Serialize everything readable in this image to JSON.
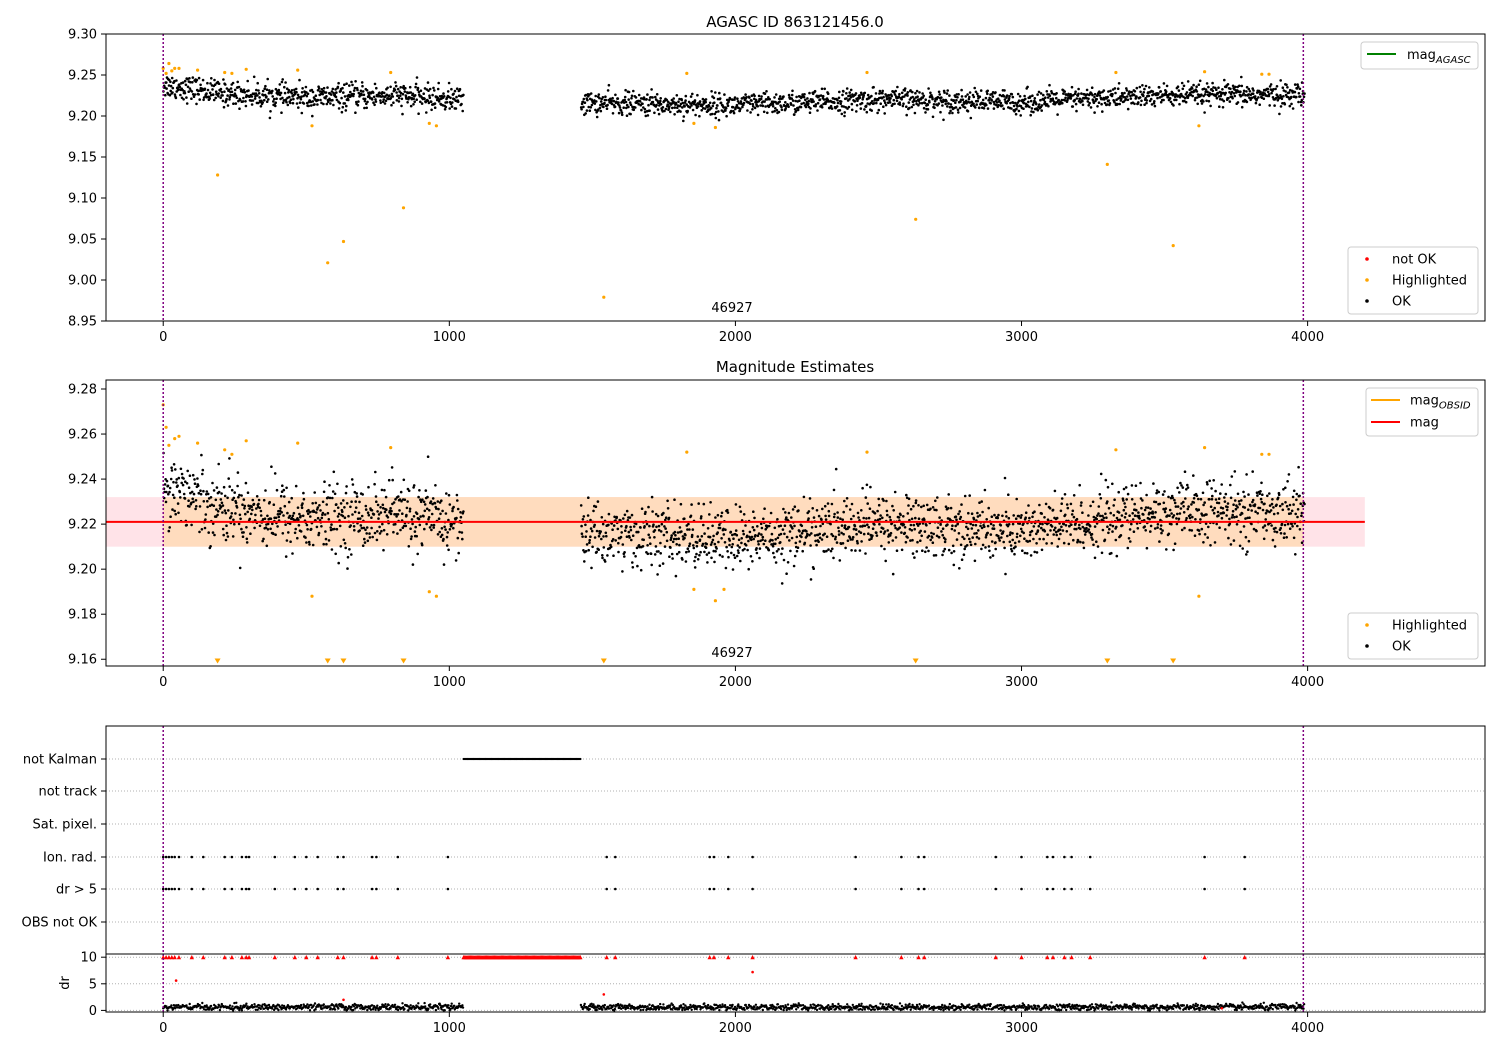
{
  "chart_data": [
    {
      "type": "scatter",
      "title": "AGASC ID 863121456.0",
      "xlim": [
        -200,
        4620
      ],
      "ylim": [
        8.95,
        9.3
      ],
      "xticks": [
        "0",
        "1000",
        "2000",
        "3000",
        "4000"
      ],
      "yticks": [
        "8.95",
        "9.00",
        "9.05",
        "9.10",
        "9.15",
        "9.20",
        "9.25",
        "9.30"
      ],
      "grid": false,
      "obsid_label": "46927",
      "vlines": [
        0,
        3985
      ],
      "legend_upper": {
        "placement": "top-right",
        "entries": [
          {
            "label": "mag",
            "sub": "AGASC",
            "color": "#008000"
          }
        ]
      },
      "legend_lower": {
        "placement": "bottom-right",
        "entries": [
          {
            "label": "not OK",
            "color": "#ff0000"
          },
          {
            "label": "Highlighted",
            "color": "#ffa500"
          },
          {
            "label": "OK",
            "color": "#000000"
          }
        ]
      },
      "series": [
        {
          "name": "OK",
          "color": "#000000",
          "segments": [
            {
              "x_start": 0,
              "x_end": 1050,
              "trend": [
                [
                  0,
                  9.238
                ],
                [
                  200,
                  9.228
                ],
                [
                  500,
                  9.222
                ],
                [
                  800,
                  9.225
                ],
                [
                  1050,
                  9.22
                ]
              ],
              "spread": 0.011
            },
            {
              "x_start": 1460,
              "x_end": 3990,
              "trend": [
                [
                  1460,
                  9.216
                ],
                [
                  2000,
                  9.213
                ],
                [
                  2500,
                  9.22
                ],
                [
                  3000,
                  9.217
                ],
                [
                  3500,
                  9.225
                ],
                [
                  3990,
                  9.226
                ]
              ],
              "spread": 0.01
            }
          ]
        },
        {
          "name": "Highlighted",
          "color": "#ffa500",
          "points": [
            [
              0,
              9.258
            ],
            [
              10,
              9.252
            ],
            [
              20,
              9.264
            ],
            [
              30,
              9.255
            ],
            [
              40,
              9.258
            ],
            [
              55,
              9.258
            ],
            [
              120,
              9.256
            ],
            [
              215,
              9.253
            ],
            [
              240,
              9.252
            ],
            [
              290,
              9.257
            ],
            [
              470,
              9.256
            ],
            [
              795,
              9.253
            ],
            [
              1830,
              9.252
            ],
            [
              2460,
              9.253
            ],
            [
              3330,
              9.253
            ],
            [
              3840,
              9.251
            ],
            [
              3865,
              9.251
            ],
            [
              3640,
              9.254
            ],
            [
              190,
              9.128
            ],
            [
              520,
              9.188
            ],
            [
              575,
              9.021
            ],
            [
              630,
              9.047
            ],
            [
              840,
              9.088
            ],
            [
              930,
              9.191
            ],
            [
              955,
              9.188
            ],
            [
              1540,
              8.979
            ],
            [
              1855,
              9.191
            ],
            [
              1930,
              9.186
            ],
            [
              2630,
              9.074
            ],
            [
              3300,
              9.141
            ],
            [
              3530,
              9.042
            ],
            [
              3620,
              9.188
            ]
          ]
        }
      ]
    },
    {
      "type": "scatter",
      "title": "Magnitude Estimates",
      "xlim": [
        -200,
        4620
      ],
      "ylim": [
        9.157,
        9.284
      ],
      "xticks": [
        "0",
        "1000",
        "2000",
        "3000",
        "4000"
      ],
      "yticks": [
        "9.16",
        "9.18",
        "9.20",
        "9.22",
        "9.24",
        "9.26",
        "9.28"
      ],
      "grid": false,
      "obsid_label": "46927",
      "vlines": [
        0,
        3985
      ],
      "mag_line": {
        "value": 9.221,
        "x_start": -200,
        "x_end": 4200,
        "color": "#ff0000"
      },
      "mag_band_outer": {
        "low": 9.21,
        "high": 9.232,
        "x_start": -200,
        "x_end": 4200,
        "color": "#ffc0cb"
      },
      "mag_band_inner": {
        "low": 9.21,
        "high": 9.232,
        "x_start": 0,
        "x_end": 3985,
        "color": "#ffdab9"
      },
      "out_of_range_markers": {
        "y": 9.159,
        "x": [
          190,
          575,
          630,
          840,
          1540,
          2630,
          3300,
          3530
        ],
        "color": "#ffa500"
      },
      "legend_upper": {
        "placement": "top-right",
        "entries": [
          {
            "label": "mag",
            "sub": "OBSID",
            "color": "#ffa500"
          },
          {
            "label": "mag",
            "sub": "",
            "color": "#ff0000"
          }
        ]
      },
      "legend_lower": {
        "placement": "bottom-right",
        "entries": [
          {
            "label": "Highlighted",
            "color": "#ffa500"
          },
          {
            "label": "OK",
            "color": "#000000"
          }
        ]
      },
      "series": [
        {
          "name": "OK",
          "color": "#000000",
          "segments": [
            {
              "x_start": 0,
              "x_end": 1050,
              "trend": [
                [
                  0,
                  9.238
                ],
                [
                  200,
                  9.228
                ],
                [
                  500,
                  9.222
                ],
                [
                  800,
                  9.225
                ],
                [
                  1050,
                  9.22
                ]
              ],
              "spread": 0.011
            },
            {
              "x_start": 1460,
              "x_end": 3990,
              "trend": [
                [
                  1460,
                  9.216
                ],
                [
                  2000,
                  9.213
                ],
                [
                  2500,
                  9.22
                ],
                [
                  3000,
                  9.217
                ],
                [
                  3500,
                  9.225
                ],
                [
                  3990,
                  9.226
                ]
              ],
              "spread": 0.01
            }
          ]
        },
        {
          "name": "Highlighted",
          "color": "#ffa500",
          "points": [
            [
              0,
              9.273
            ],
            [
              10,
              9.263
            ],
            [
              20,
              9.255
            ],
            [
              40,
              9.258
            ],
            [
              55,
              9.259
            ],
            [
              120,
              9.256
            ],
            [
              215,
              9.253
            ],
            [
              240,
              9.251
            ],
            [
              290,
              9.257
            ],
            [
              470,
              9.256
            ],
            [
              795,
              9.254
            ],
            [
              1830,
              9.252
            ],
            [
              2460,
              9.252
            ],
            [
              3330,
              9.253
            ],
            [
              3840,
              9.251
            ],
            [
              3865,
              9.251
            ],
            [
              3640,
              9.254
            ],
            [
              520,
              9.188
            ],
            [
              930,
              9.19
            ],
            [
              955,
              9.188
            ],
            [
              1855,
              9.191
            ],
            [
              1930,
              9.186
            ],
            [
              1960,
              9.191
            ],
            [
              3620,
              9.188
            ]
          ]
        }
      ]
    },
    {
      "type": "scatter",
      "title": "",
      "xlim": [
        -200,
        4620
      ],
      "categories": [
        "not Kalman",
        "not track",
        "Sat. pixel.",
        "Ion. rad.",
        "dr > 5",
        "OBS not OK"
      ],
      "vlines": [
        0,
        3985
      ],
      "grid": true,
      "flags": {
        "not Kalman": {
          "ranges": [
            [
              1050,
              1460
            ]
          ]
        },
        "not track": {
          "ranges": []
        },
        "Sat. pixel.": {
          "ranges": []
        },
        "Ion. rad.": {
          "points": [
            0,
            10,
            20,
            30,
            40,
            55,
            100,
            140,
            215,
            240,
            275,
            290,
            300,
            390,
            460,
            500,
            540,
            610,
            630,
            730,
            745,
            820,
            995,
            1550,
            1580,
            1910,
            1925,
            1975,
            2060,
            2420,
            2580,
            2640,
            2660,
            2910,
            3000,
            3090,
            3110,
            3150,
            3175,
            3240,
            3640,
            3780
          ]
        },
        "dr > 5": {
          "points": [
            0,
            10,
            20,
            30,
            40,
            55,
            100,
            140,
            215,
            240,
            275,
            290,
            300,
            390,
            460,
            500,
            540,
            610,
            630,
            730,
            745,
            820,
            995,
            1550,
            1580,
            1910,
            1925,
            1975,
            2060,
            2420,
            2580,
            2640,
            2660,
            2910,
            3000,
            3090,
            3110,
            3150,
            3175,
            3240,
            3640,
            3780
          ]
        },
        "OBS not OK": {
          "ranges": []
        }
      }
    },
    {
      "type": "scatter",
      "title": "",
      "ylabel": "dr",
      "xlim": [
        -200,
        4620
      ],
      "ylim": [
        -0.3,
        10.6
      ],
      "xticks": [
        "0",
        "1000",
        "2000",
        "3000",
        "4000"
      ],
      "yticks": [
        "0",
        "5",
        "10"
      ],
      "grid": true,
      "vlines": [
        0,
        3985
      ],
      "series": [
        {
          "name": "OK",
          "color": "#000000",
          "segments": [
            {
              "x_start": 0,
              "x_end": 1050,
              "base": 0.6,
              "spread": 0.3
            },
            {
              "x_start": 1460,
              "x_end": 3990,
              "base": 0.6,
              "spread": 0.3
            }
          ]
        },
        {
          "name": "not OK",
          "color": "#ff0000",
          "capped": {
            "y": 10.0,
            "points": [
              0,
              10,
              20,
              30,
              40,
              55,
              100,
              140,
              215,
              240,
              275,
              290,
              300,
              390,
              460,
              500,
              540,
              610,
              630,
              730,
              745,
              820,
              995,
              1550,
              1580,
              1910,
              1925,
              1975,
              2060,
              2420,
              2580,
              2640,
              2660,
              2910,
              3000,
              3090,
              3110,
              3150,
              3175,
              3240,
              3640,
              3780
            ]
          },
          "capped_range": {
            "y": 10.0,
            "x_start": 1050,
            "x_end": 1460
          },
          "points": [
            [
              45,
              5.6
            ],
            [
              2060,
              7.2
            ],
            [
              1540,
              3.0
            ],
            [
              630,
              2.0
            ],
            [
              3700,
              0.4
            ]
          ]
        }
      ]
    }
  ]
}
